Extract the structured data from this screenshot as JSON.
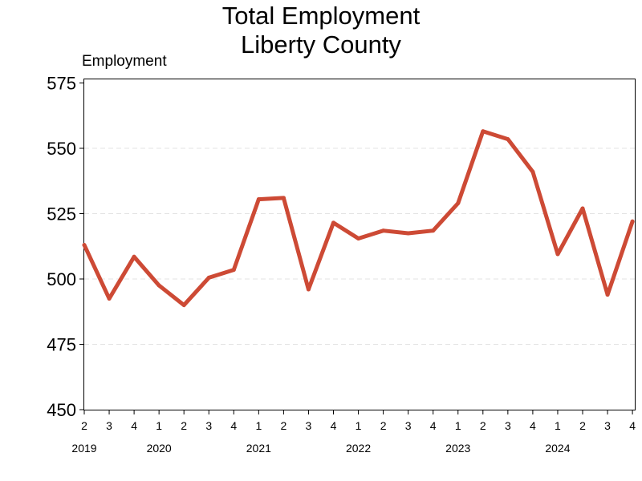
{
  "chart_data": {
    "type": "line",
    "title": "Total Employment",
    "subtitle": "Liberty County",
    "ylabel": "Employment",
    "xlabel": "",
    "ylim": [
      450,
      575
    ],
    "yticks": [
      450,
      475,
      500,
      525,
      550,
      575
    ],
    "grid": "horizontal dashed",
    "line_color": "#cd4a35",
    "quarters": [
      "2",
      "3",
      "4",
      "1",
      "2",
      "3",
      "4",
      "1",
      "2",
      "3",
      "4",
      "1",
      "2",
      "3",
      "4",
      "1",
      "2",
      "3",
      "4",
      "1",
      "2",
      "3",
      "4"
    ],
    "year_labels": [
      {
        "label": "2019",
        "index": 0
      },
      {
        "label": "2020",
        "index": 3
      },
      {
        "label": "2021",
        "index": 7
      },
      {
        "label": "2022",
        "index": 11
      },
      {
        "label": "2023",
        "index": 15
      },
      {
        "label": "2024",
        "index": 19
      }
    ],
    "series": [
      {
        "values": [
          513,
          492.5,
          508.5,
          497.5,
          490,
          500.5,
          503.5,
          530.5,
          531,
          496,
          521.5,
          515.5,
          518.5,
          517.5,
          518.5,
          529,
          556.5,
          553.5,
          541,
          509.5,
          527,
          494,
          522
        ]
      }
    ]
  }
}
